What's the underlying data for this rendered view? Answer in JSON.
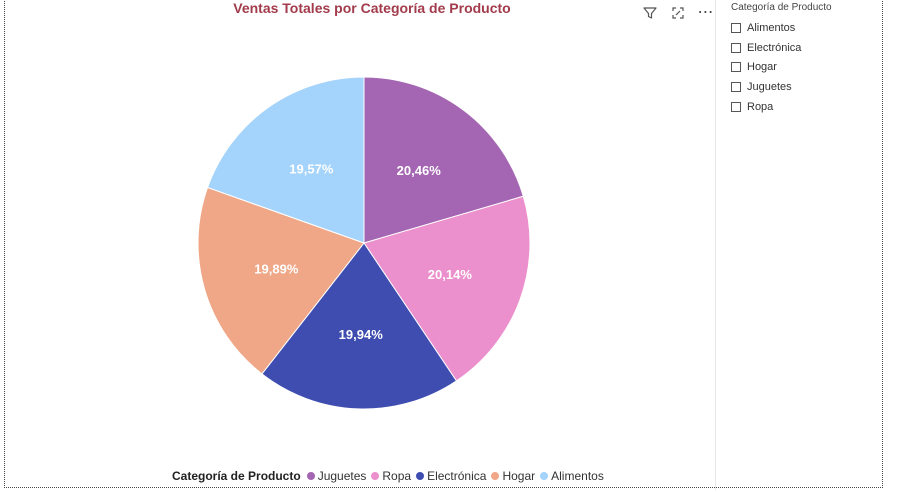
{
  "chart": {
    "title": "Ventas Totales por Categoría de Producto",
    "legend_title": "Categoría de Producto"
  },
  "chart_data": {
    "type": "pie",
    "title": "Ventas Totales por Categoría de Producto",
    "legend_title": "Categoría de Producto",
    "legend_position": "bottom",
    "categories": [
      "Juguetes",
      "Ropa",
      "Electrónica",
      "Hogar",
      "Alimentos"
    ],
    "values": [
      20.46,
      20.14,
      19.94,
      19.89,
      19.57
    ],
    "labels": [
      "20,46%",
      "20,14%",
      "19,94%",
      "19,89%",
      "19,57%"
    ],
    "colors": [
      "#a466b2",
      "#ec8fcd",
      "#3f4db0",
      "#efa787",
      "#a4d3fc"
    ],
    "start_angle_deg": 0,
    "direction": "clockwise"
  },
  "slicer": {
    "title": "Categoría de Producto",
    "items": [
      "Alimentos",
      "Electrónica",
      "Hogar",
      "Juguetes",
      "Ropa"
    ]
  },
  "icons": [
    "filter-icon",
    "focus-mode-icon",
    "more-options-icon"
  ]
}
